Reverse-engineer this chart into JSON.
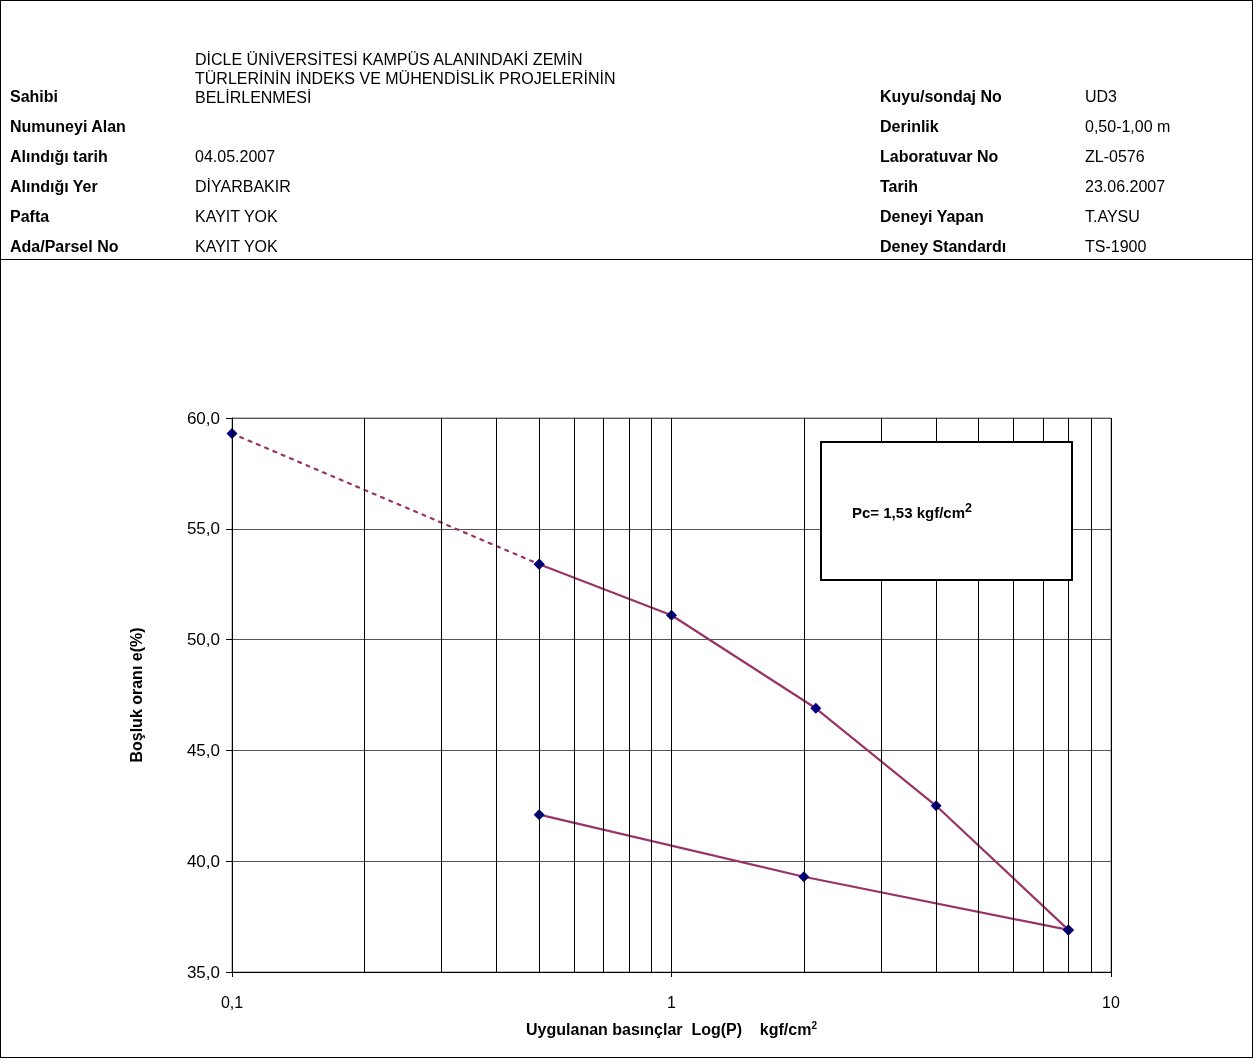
{
  "chart_data": {
    "type": "line",
    "annotations": [
      "Sahibi",
      "DİCLE ÜNİVERSİTESİ KAMPÜS ALANINDAKİ ZEMİN TÜRLERİNİN İNDEKS VE MÜHENDİSLİK PROJELERİNİN BELİRLENMESİ",
      "Kuyu/sondaj No",
      "UD3",
      "Numuneyi Alan",
      "Derinlik",
      "0,50-1,00 m",
      "Alındığı tarih",
      "04.05.2007",
      "Laboratuvar No",
      "ZL-0576",
      "Alındığı Yer",
      "DİYARBAKIR",
      "Tarih",
      "23.06.2007",
      "Pafta",
      "KAYIT YOK",
      "Deneyi Yapan",
      "T.AYSU",
      "Ada/Parsel No",
      "KAYIT YOK",
      "Deney Standardı",
      "TS-1900",
      "Pc=  1,53  kgf/cm$^{2}$"
    ],
    "xlabel": "Uygulanan basınçlar  Log(P)    kgf/cm$^{2}$",
    "ylabel": "Boşluk oranı e(%)",
    "log": "x",
    "xlim": [
      0.1,
      10
    ],
    "xticks": [
      {
        "value": 0.1,
        "label": "0,1"
      },
      {
        "value": 0.2,
        "label": null
      },
      {
        "value": 0.3,
        "label": null
      },
      {
        "value": 0.4,
        "label": null
      },
      {
        "value": 0.5,
        "label": null
      },
      {
        "value": 0.6,
        "label": null
      },
      {
        "value": 0.7,
        "label": null
      },
      {
        "value": 0.8,
        "label": null
      },
      {
        "value": 0.9,
        "label": null
      },
      1,
      {
        "value": 2,
        "label": null
      },
      {
        "value": 3,
        "label": null
      },
      {
        "value": 4,
        "label": null
      },
      {
        "value": 5,
        "label": null
      },
      {
        "value": 6,
        "label": null
      },
      {
        "value": 7,
        "label": null
      },
      {
        "value": 8,
        "label": null
      },
      {
        "value": 9,
        "label": null
      },
      10
    ],
    "ylim": [
      35,
      60
    ],
    "yticks": [
      {
        "value": 35,
        "label": "35,0"
      },
      {
        "value": 40,
        "label": "40,0"
      },
      {
        "value": 45,
        "label": "45,0"
      },
      {
        "value": 50,
        "label": "50,0"
      },
      {
        "value": 55,
        "label": "55,0"
      },
      {
        "value": 60,
        "label": "60,0"
      }
    ],
    "grid": true,
    "marker": "diamond",
    "series": [
      {
        "color": "#993366",
        "line_style": "dotted",
        "x": [
          0.1,
          0.5
        ],
        "values": [
          59.3,
          53.4
        ]
      },
      {
        "color": "#993366",
        "line_style": "solid",
        "x": [
          0.5,
          1,
          2.13,
          4,
          8
        ],
        "values": [
          53.4,
          51.1,
          46.9,
          42.5,
          36.9
        ]
      },
      {
        "color": "#993366",
        "line_style": "solid",
        "x": [
          0.5,
          2,
          8
        ],
        "values": [
          42.1,
          39.3,
          36.9
        ]
      }
    ]
  }
}
